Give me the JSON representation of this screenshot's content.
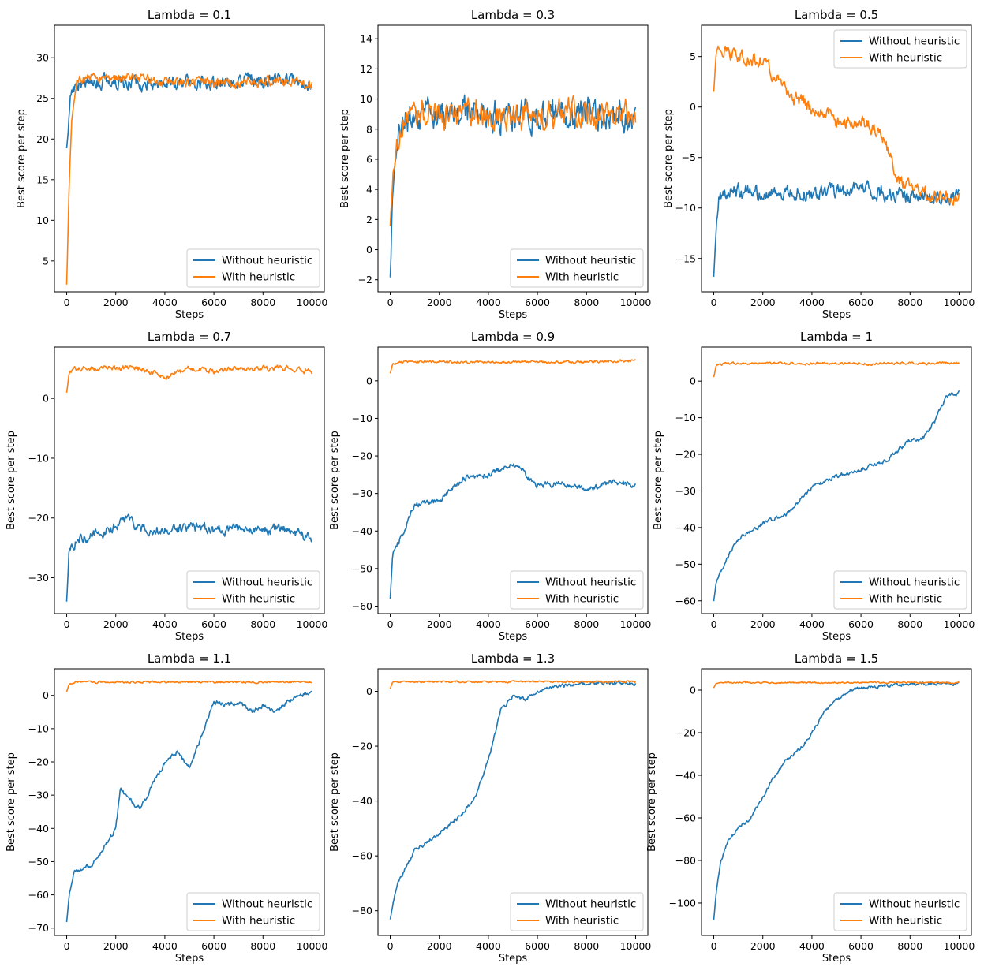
{
  "figure": {
    "legend_labels": [
      "Without heuristic",
      "With heuristic"
    ],
    "series_colors": [
      "#1f77b4",
      "#ff7f0e"
    ]
  },
  "chart_data": [
    {
      "type": "line",
      "title": "Lambda = 0.1",
      "xlabel": "Steps",
      "ylabel": "Best score per step",
      "xlim": [
        -500,
        10500
      ],
      "ylim": [
        1.2,
        34.0
      ],
      "xticks": [
        0,
        2000,
        4000,
        6000,
        8000,
        10000
      ],
      "yticks": [
        5,
        10,
        15,
        20,
        25,
        30
      ],
      "legend": "lower right",
      "grid": false,
      "series": [
        {
          "name": "Without heuristic",
          "x": [
            0,
            150,
            400,
            1000,
            2000,
            3000,
            4000,
            5000,
            6000,
            7000,
            7500,
            8000,
            9000,
            10000
          ],
          "y": [
            19.0,
            25.0,
            27.0,
            27.0,
            27.0,
            27.0,
            27.0,
            27.0,
            27.0,
            27.5,
            27.5,
            27.0,
            27.0,
            27.0
          ],
          "noise": 1.6
        },
        {
          "name": "With heuristic",
          "x": [
            0,
            100,
            200,
            400,
            1000,
            2000,
            3000,
            4000,
            5000,
            6000,
            7000,
            8000,
            9000,
            10000
          ],
          "y": [
            2.0,
            14.0,
            22.0,
            27.0,
            27.5,
            27.5,
            27.5,
            27.0,
            27.0,
            27.0,
            27.0,
            27.0,
            27.0,
            26.5
          ],
          "noise": 1.1
        }
      ]
    },
    {
      "type": "line",
      "title": "Lambda = 0.3",
      "xlabel": "Steps",
      "ylabel": "Best score per step",
      "xlim": [
        -500,
        10500
      ],
      "ylim": [
        -2.8,
        14.9
      ],
      "xticks": [
        0,
        2000,
        4000,
        6000,
        8000,
        10000
      ],
      "yticks": [
        -2,
        0,
        2,
        4,
        6,
        8,
        10,
        12,
        14
      ],
      "legend": "lower right",
      "grid": false,
      "series": [
        {
          "name": "Without heuristic",
          "x": [
            0,
            100,
            300,
            600,
            1000,
            2000,
            3000,
            4000,
            5000,
            6000,
            7000,
            8000,
            9000,
            10000
          ],
          "y": [
            -2.0,
            4.0,
            7.0,
            8.5,
            9.0,
            9.0,
            9.0,
            9.0,
            9.0,
            9.0,
            9.0,
            9.0,
            9.0,
            9.0
          ],
          "noise": 1.9
        },
        {
          "name": "With heuristic",
          "x": [
            0,
            100,
            300,
            600,
            1000,
            2000,
            3000,
            4000,
            5000,
            6000,
            7000,
            8000,
            9000,
            10000
          ],
          "y": [
            1.5,
            4.5,
            7.0,
            8.5,
            9.0,
            9.0,
            9.0,
            9.0,
            9.0,
            9.0,
            9.0,
            9.0,
            9.0,
            9.0
          ],
          "noise": 1.7
        }
      ]
    },
    {
      "type": "line",
      "title": "Lambda = 0.5",
      "xlabel": "Steps",
      "ylabel": "Best score per step",
      "xlim": [
        -500,
        10500
      ],
      "ylim": [
        -18.3,
        8.1
      ],
      "xticks": [
        0,
        2000,
        4000,
        6000,
        8000,
        10000
      ],
      "yticks": [
        -15,
        -10,
        -5,
        0,
        5
      ],
      "legend": "upper right",
      "grid": false,
      "series": [
        {
          "name": "Without heuristic",
          "x": [
            0,
            100,
            200,
            400,
            1000,
            2000,
            3000,
            4000,
            5000,
            6000,
            7000,
            8000,
            9000,
            10000
          ],
          "y": [
            -17.0,
            -12.0,
            -9.0,
            -8.5,
            -8.5,
            -8.5,
            -8.5,
            -8.5,
            -8.5,
            -8.0,
            -8.5,
            -9.0,
            -9.0,
            -9.0
          ],
          "noise": 1.4
        },
        {
          "name": "With heuristic",
          "x": [
            0,
            100,
            300,
            1000,
            2000,
            2500,
            3000,
            4000,
            5000,
            6000,
            6800,
            7500,
            8500,
            10000
          ],
          "y": [
            1.5,
            5.5,
            6.0,
            5.0,
            4.5,
            3.0,
            1.0,
            0.0,
            -1.5,
            -1.5,
            -2.5,
            -7.0,
            -8.5,
            -9.0
          ],
          "noise": 1.3
        }
      ]
    },
    {
      "type": "line",
      "title": "Lambda = 0.7",
      "xlabel": "Steps",
      "ylabel": "Best score per step",
      "xlim": [
        -500,
        10500
      ],
      "ylim": [
        -36.0,
        8.6
      ],
      "xticks": [
        0,
        2000,
        4000,
        6000,
        8000,
        10000
      ],
      "yticks": [
        -30,
        -20,
        -10,
        0
      ],
      "legend": "lower right",
      "grid": false,
      "series": [
        {
          "name": "Without heuristic",
          "x": [
            0,
            100,
            500,
            1500,
            2500,
            3000,
            4000,
            5000,
            6000,
            7000,
            8000,
            9000,
            10000
          ],
          "y": [
            -34.0,
            -25.0,
            -23.5,
            -22.5,
            -20.0,
            -22.0,
            -22.0,
            -21.5,
            -22.0,
            -22.0,
            -22.0,
            -22.0,
            -23.5
          ],
          "noise": 1.5
        },
        {
          "name": "With heuristic",
          "x": [
            0,
            100,
            500,
            1000,
            2000,
            3000,
            4000,
            5000,
            6000,
            7000,
            8000,
            9000,
            10000
          ],
          "y": [
            1.0,
            4.5,
            5.0,
            5.0,
            5.0,
            5.0,
            3.5,
            5.0,
            4.5,
            5.0,
            5.0,
            5.0,
            4.5
          ],
          "noise": 0.8
        }
      ]
    },
    {
      "type": "line",
      "title": "Lambda = 0.9",
      "xlabel": "Steps",
      "ylabel": "Best score per step",
      "xlim": [
        -500,
        10500
      ],
      "ylim": [
        -62.0,
        9.0
      ],
      "xticks": [
        0,
        2000,
        4000,
        6000,
        8000,
        10000
      ],
      "yticks": [
        -60,
        -50,
        -40,
        -30,
        -20,
        -10,
        0
      ],
      "legend": "lower right",
      "grid": false,
      "series": [
        {
          "name": "Without heuristic",
          "x": [
            0,
            100,
            500,
            1000,
            2000,
            3000,
            4000,
            5000,
            6000,
            7000,
            8000,
            9000,
            10000
          ],
          "y": [
            -58.0,
            -46.0,
            -41.0,
            -33.0,
            -32.0,
            -26.0,
            -25.0,
            -22.0,
            -28.0,
            -27.0,
            -29.0,
            -27.0,
            -28.0
          ],
          "noise": 1.4
        },
        {
          "name": "With heuristic",
          "x": [
            0,
            100,
            500,
            2000,
            4000,
            6000,
            8000,
            10000
          ],
          "y": [
            2.0,
            4.5,
            5.0,
            5.0,
            5.0,
            5.0,
            5.0,
            5.5
          ],
          "noise": 0.6
        }
      ]
    },
    {
      "type": "line",
      "title": "Lambda = 1",
      "xlabel": "Steps",
      "ylabel": "Best score per step",
      "xlim": [
        -500,
        10500
      ],
      "ylim": [
        -63.5,
        9.3
      ],
      "xticks": [
        0,
        2000,
        4000,
        6000,
        8000,
        10000
      ],
      "yticks": [
        -60,
        -50,
        -40,
        -30,
        -20,
        -10,
        0
      ],
      "legend": "lower right",
      "grid": false,
      "series": [
        {
          "name": "Without heuristic",
          "x": [
            0,
            100,
            500,
            1000,
            2000,
            3000,
            4000,
            5000,
            6000,
            7000,
            8000,
            8500,
            9000,
            9500,
            10000
          ],
          "y": [
            -60.0,
            -55.0,
            -49.0,
            -43.0,
            -39.0,
            -36.0,
            -29.0,
            -26.0,
            -24.0,
            -22.0,
            -16.0,
            -16.0,
            -11.0,
            -4.0,
            -3.0
          ],
          "noise": 1.0
        },
        {
          "name": "With heuristic",
          "x": [
            0,
            100,
            500,
            2000,
            4000,
            6000,
            8000,
            10000
          ],
          "y": [
            1.0,
            4.5,
            4.8,
            4.8,
            4.8,
            4.8,
            4.8,
            5.0
          ],
          "noise": 0.6
        }
      ]
    },
    {
      "type": "line",
      "title": "Lambda = 1.1",
      "xlabel": "Steps",
      "ylabel": "Best score per step",
      "xlim": [
        -500,
        10500
      ],
      "ylim": [
        -72.2,
        8.0
      ],
      "xticks": [
        0,
        2000,
        4000,
        6000,
        8000,
        10000
      ],
      "yticks": [
        -70,
        -60,
        -50,
        -40,
        -30,
        -20,
        -10,
        0
      ],
      "legend": "lower right",
      "grid": false,
      "series": [
        {
          "name": "Without heuristic",
          "x": [
            0,
            100,
            300,
            1000,
            1500,
            2000,
            2200,
            2500,
            3000,
            3500,
            4000,
            4500,
            5000,
            5500,
            6000,
            6500,
            7000,
            7500,
            8000,
            8500,
            9000,
            9500,
            10000
          ],
          "y": [
            -68.0,
            -60.0,
            -53.0,
            -51.0,
            -46.0,
            -40.0,
            -28.0,
            -31.0,
            -34.0,
            -27.0,
            -20.0,
            -17.0,
            -22.0,
            -12.0,
            -2.0,
            -3.0,
            -2.0,
            -5.0,
            -3.0,
            -5.0,
            -2.0,
            0.0,
            1.0
          ],
          "noise": 1.3
        },
        {
          "name": "With heuristic",
          "x": [
            0,
            100,
            500,
            2000,
            4000,
            6000,
            8000,
            10000
          ],
          "y": [
            1.0,
            3.5,
            4.0,
            4.0,
            4.0,
            4.0,
            4.0,
            4.0
          ],
          "noise": 0.5
        }
      ]
    },
    {
      "type": "line",
      "title": "Lambda = 1.3",
      "xlabel": "Steps",
      "ylabel": "Best score per step",
      "xlim": [
        -500,
        10500
      ],
      "ylim": [
        -89.0,
        8.2
      ],
      "xticks": [
        0,
        2000,
        4000,
        6000,
        8000,
        10000
      ],
      "yticks": [
        -80,
        -60,
        -40,
        -20,
        0
      ],
      "legend": "lower right",
      "grid": false,
      "series": [
        {
          "name": "Without heuristic",
          "x": [
            0,
            100,
            300,
            600,
            1000,
            2000,
            3000,
            3500,
            4000,
            4500,
            5000,
            5500,
            6000,
            6500,
            7000,
            8000,
            9000,
            10000
          ],
          "y": [
            -83.0,
            -78.0,
            -70.0,
            -65.0,
            -58.0,
            -52.0,
            -44.0,
            -38.0,
            -25.0,
            -7.0,
            -2.0,
            -3.0,
            0.0,
            1.0,
            2.0,
            3.0,
            3.0,
            3.0
          ],
          "noise": 1.3
        },
        {
          "name": "With heuristic",
          "x": [
            0,
            100,
            500,
            2000,
            4000,
            6000,
            8000,
            10000
          ],
          "y": [
            1.0,
            3.5,
            3.5,
            3.5,
            3.5,
            3.5,
            3.5,
            3.5
          ],
          "noise": 0.6
        }
      ]
    },
    {
      "type": "line",
      "title": "Lambda = 1.5",
      "xlabel": "Steps",
      "ylabel": "Best score per step",
      "xlim": [
        -500,
        10500
      ],
      "ylim": [
        -115.2,
        10.0
      ],
      "xticks": [
        0,
        2000,
        4000,
        6000,
        8000,
        10000
      ],
      "yticks": [
        -100,
        -80,
        -60,
        -40,
        -20,
        0
      ],
      "legend": "lower right",
      "grid": false,
      "series": [
        {
          "name": "Without heuristic",
          "x": [
            0,
            100,
            300,
            600,
            1000,
            1500,
            2000,
            2500,
            3000,
            3500,
            4000,
            4500,
            5000,
            5500,
            6000,
            7000,
            8000,
            9000,
            10000
          ],
          "y": [
            -108.0,
            -95.0,
            -80.0,
            -70.0,
            -65.0,
            -60.0,
            -50.0,
            -40.0,
            -32.0,
            -28.0,
            -20.0,
            -10.0,
            -5.0,
            0.0,
            1.0,
            2.0,
            3.0,
            3.0,
            3.0
          ],
          "noise": 1.5
        },
        {
          "name": "With heuristic",
          "x": [
            0,
            100,
            500,
            2000,
            4000,
            6000,
            8000,
            10000
          ],
          "y": [
            1.0,
            3.0,
            3.5,
            3.5,
            3.5,
            3.5,
            3.5,
            3.5
          ],
          "noise": 0.6
        }
      ]
    }
  ]
}
